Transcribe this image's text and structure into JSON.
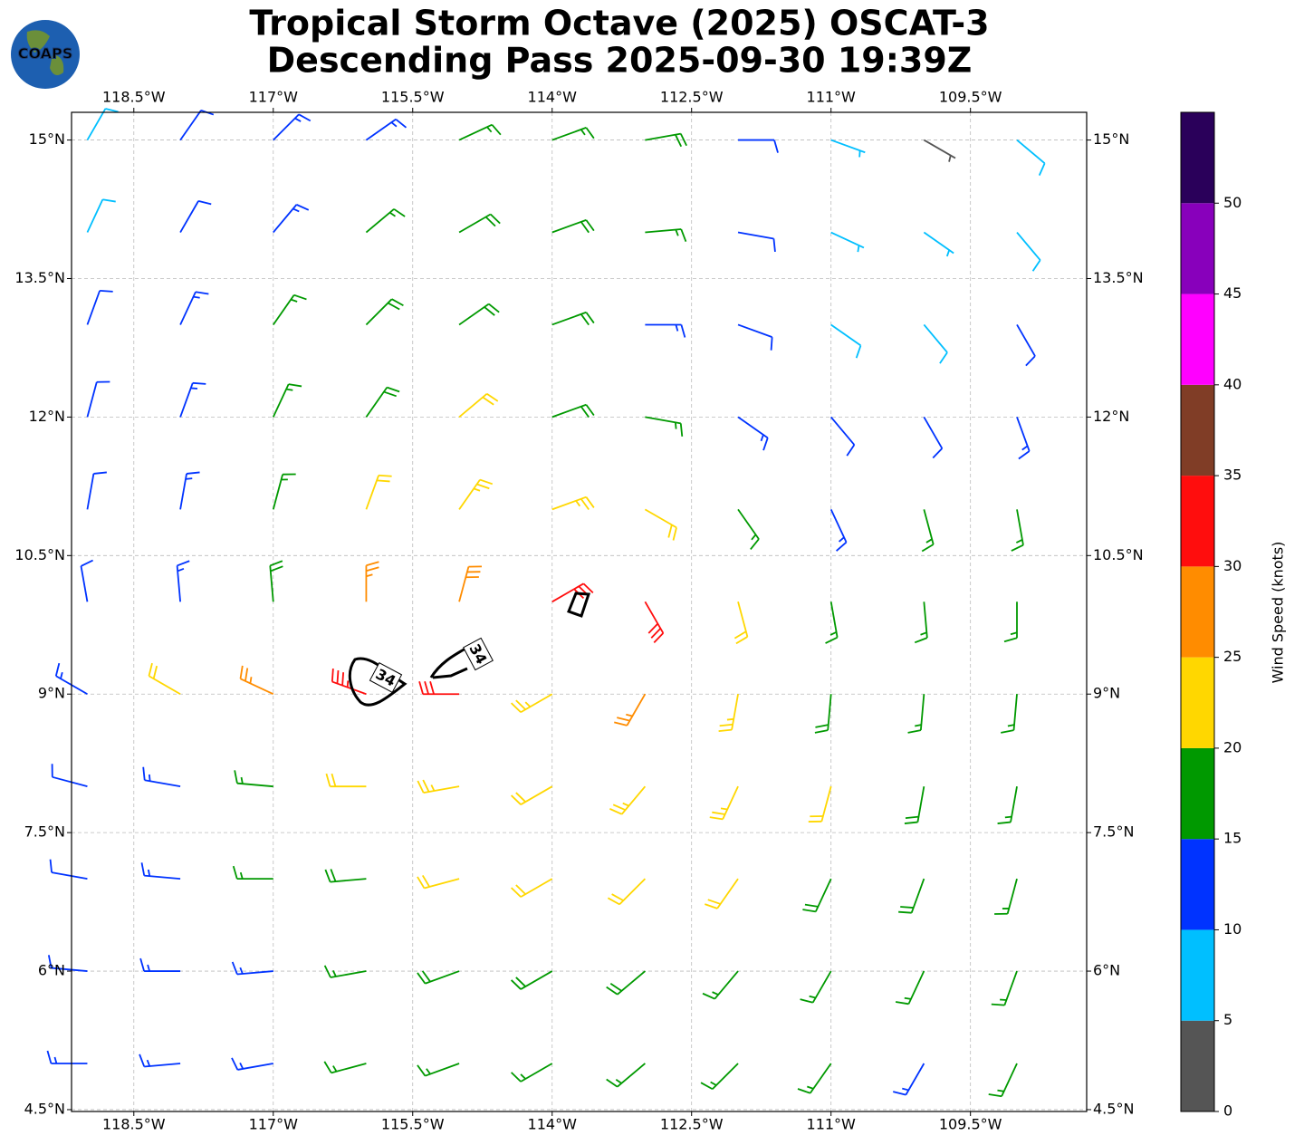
{
  "chart_data": {
    "type": "wind-barb-map",
    "title": "Tropical Storm Octave (2025) OSCAT-3",
    "subtitle": "Descending Pass 2025-09-30 19:39Z",
    "logo_text": "COAPS",
    "xlim": [
      -119.17,
      -108.25
    ],
    "ylim": [
      4.48,
      15.3
    ],
    "grid": true,
    "xticks": [
      {
        "value": -118.5,
        "label": "118.5°W"
      },
      {
        "value": -117,
        "label": "117°W"
      },
      {
        "value": -115.5,
        "label": "115.5°W"
      },
      {
        "value": -114,
        "label": "114°W"
      },
      {
        "value": -112.5,
        "label": "112.5°W"
      },
      {
        "value": -111,
        "label": "111°W"
      },
      {
        "value": -109.5,
        "label": "109.5°W"
      }
    ],
    "yticks": [
      {
        "value": 15,
        "label": "15°N"
      },
      {
        "value": 13.5,
        "label": "13.5°N"
      },
      {
        "value": 12,
        "label": "12°N"
      },
      {
        "value": 10.5,
        "label": "10.5°N"
      },
      {
        "value": 9,
        "label": "9°N"
      },
      {
        "value": 7.5,
        "label": "7.5°N"
      },
      {
        "value": 6,
        "label": "6°N"
      },
      {
        "value": 4.5,
        "label": "4.5°N"
      }
    ],
    "lons": [
      -119,
      -118,
      -117,
      -116,
      -115,
      -114,
      -113,
      -112,
      -111,
      -110,
      -109
    ],
    "lats": [
      15,
      14,
      13,
      12,
      11,
      10,
      9,
      8,
      7,
      6,
      5
    ],
    "speed": [
      [
        8,
        12,
        13,
        14,
        17,
        17,
        18,
        12,
        6,
        4,
        8
      ],
      [
        9,
        12,
        13,
        16,
        18,
        18,
        16,
        10,
        6,
        6,
        8
      ],
      [
        10,
        13,
        15,
        18,
        19,
        18,
        14,
        12,
        8,
        8,
        10
      ],
      [
        12,
        13,
        16,
        19,
        21,
        18,
        15,
        13,
        10,
        12,
        13
      ],
      [
        12,
        14,
        17,
        21,
        23,
        24,
        20,
        16,
        14,
        15,
        16
      ],
      [
        11,
        14,
        18,
        26,
        28,
        30,
        30,
        22,
        17,
        16,
        17
      ],
      [
        14,
        22,
        26,
        33,
        30,
        24,
        26,
        23,
        19,
        17,
        17
      ],
      [
        12,
        14,
        15,
        20,
        24,
        22,
        24,
        23,
        20,
        18,
        17
      ],
      [
        12,
        14,
        15,
        18,
        22,
        22,
        22,
        21,
        19,
        18,
        17
      ],
      [
        12,
        13,
        14,
        16,
        18,
        19,
        18,
        17,
        17,
        16,
        16
      ],
      [
        13,
        13,
        14,
        15,
        16,
        17,
        17,
        16,
        15,
        14,
        16
      ]
    ],
    "direction": [
      [
        30,
        35,
        45,
        55,
        65,
        70,
        80,
        90,
        110,
        120,
        130
      ],
      [
        25,
        30,
        40,
        50,
        60,
        70,
        85,
        100,
        115,
        125,
        140
      ],
      [
        20,
        25,
        35,
        45,
        55,
        70,
        90,
        110,
        125,
        140,
        150
      ],
      [
        15,
        20,
        25,
        35,
        50,
        70,
        100,
        125,
        140,
        150,
        160
      ],
      [
        10,
        10,
        15,
        20,
        35,
        70,
        120,
        145,
        155,
        165,
        170
      ],
      [
        350,
        355,
        355,
        0,
        15,
        60,
        150,
        165,
        170,
        175,
        180
      ],
      [
        300,
        300,
        295,
        290,
        270,
        240,
        210,
        190,
        185,
        185,
        185
      ],
      [
        285,
        280,
        275,
        270,
        260,
        240,
        220,
        205,
        195,
        190,
        190
      ],
      [
        280,
        275,
        270,
        265,
        255,
        240,
        225,
        215,
        205,
        200,
        195
      ],
      [
        275,
        270,
        265,
        260,
        250,
        240,
        230,
        220,
        210,
        205,
        200
      ],
      [
        270,
        265,
        260,
        255,
        250,
        240,
        230,
        225,
        215,
        210,
        205
      ]
    ],
    "contour_labels": [
      "34",
      "34"
    ],
    "colorbar": {
      "label": "Wind Speed (knots)",
      "bounds": [
        0,
        5,
        10,
        15,
        20,
        25,
        30,
        35,
        40,
        45,
        50,
        55
      ],
      "colors": [
        "#555555",
        "#00bfff",
        "#0033ff",
        "#009900",
        "#ffd700",
        "#ff8c00",
        "#ff0d0d",
        "#803d26",
        "#ff00ff",
        "#8800bb",
        "#2a005a"
      ],
      "ticks": [
        0,
        5,
        10,
        15,
        20,
        25,
        30,
        35,
        40,
        45,
        50
      ]
    }
  }
}
